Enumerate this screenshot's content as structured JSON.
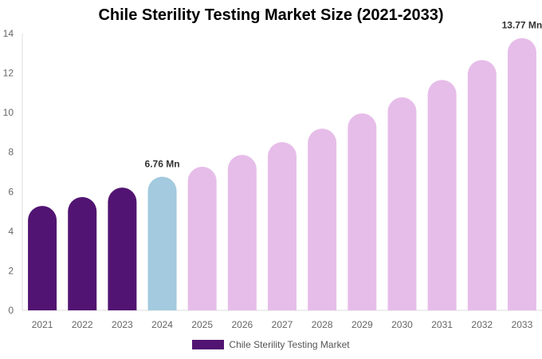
{
  "chart_data": {
    "type": "bar",
    "title": "Chile Sterility Testing Market Size (2021-2033)",
    "categories": [
      "2021",
      "2022",
      "2023",
      "2024",
      "2025",
      "2026",
      "2027",
      "2028",
      "2029",
      "2030",
      "2031",
      "2032",
      "2033"
    ],
    "series": [
      {
        "name": "Chile Sterility Testing Market",
        "values": [
          5.28,
          5.73,
          6.21,
          6.76,
          7.26,
          7.86,
          8.51,
          9.19,
          9.96,
          10.77,
          11.65,
          12.66,
          13.77
        ]
      }
    ],
    "data_labels": [
      {
        "category": "2024",
        "text": "6.76 Mn"
      },
      {
        "category": "2033",
        "text": "13.77 Mn"
      }
    ],
    "bar_colors": [
      "#521472",
      "#521472",
      "#521472",
      "#a3cade",
      "#e6bde9",
      "#e6bde9",
      "#e6bde9",
      "#e6bde9",
      "#e6bde9",
      "#e6bde9",
      "#e6bde9",
      "#e6bde9",
      "#e6bde9"
    ],
    "yticks": [
      0,
      2,
      4,
      6,
      8,
      10,
      12,
      14
    ],
    "ylim": [
      0,
      14
    ],
    "xlabel": "",
    "ylabel": "",
    "grid": false,
    "legend": {
      "position": "bottom",
      "label": "Chile Sterility Testing Market",
      "color": "#521472"
    }
  }
}
